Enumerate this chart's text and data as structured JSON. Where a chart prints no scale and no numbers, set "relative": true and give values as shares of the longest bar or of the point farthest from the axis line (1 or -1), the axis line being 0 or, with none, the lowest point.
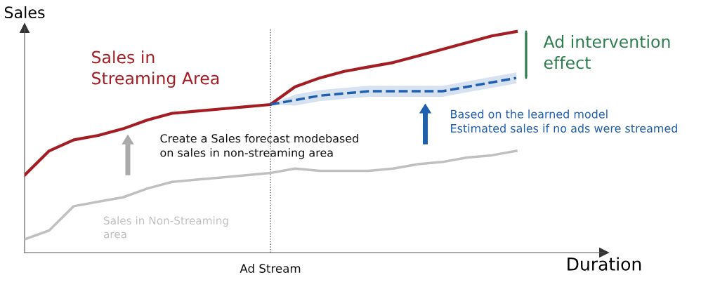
{
  "chart_data": {
    "type": "line",
    "relative": true,
    "xlabel": "Duration",
    "ylabel": "Sales",
    "categories": [
      null,
      null,
      null,
      null,
      null,
      null,
      null,
      null,
      null,
      null,
      null,
      null,
      null,
      null,
      null,
      null,
      null,
      null,
      null,
      null,
      null
    ],
    "series": [
      {
        "name": "Sales in\nStreaming Area",
        "color": "#a51d24",
        "values": [
          0.35,
          0.46,
          0.51,
          0.53,
          0.56,
          0.6,
          0.63,
          0.64,
          0.65,
          0.66,
          0.67,
          0.75,
          0.79,
          0.82,
          0.84,
          0.86,
          0.89,
          0.92,
          0.95,
          0.98,
          1.0
        ]
      },
      {
        "name": "Based on the learned model\nEstimated sales if no ads were streamed",
        "color": "#1f5fb0",
        "line_style": "dashed",
        "values": [
          null,
          null,
          null,
          null,
          null,
          null,
          null,
          null,
          null,
          null,
          0.67,
          0.69,
          0.71,
          0.72,
          0.73,
          0.73,
          0.73,
          0.73,
          0.75,
          0.77,
          0.79
        ],
        "lower": [
          null,
          null,
          null,
          null,
          null,
          null,
          null,
          null,
          null,
          null,
          0.67,
          0.665,
          0.685,
          0.695,
          0.705,
          0.705,
          0.705,
          0.705,
          0.725,
          0.745,
          0.765
        ],
        "upper": [
          null,
          null,
          null,
          null,
          null,
          null,
          null,
          null,
          null,
          null,
          0.67,
          0.715,
          0.735,
          0.745,
          0.755,
          0.755,
          0.755,
          0.755,
          0.775,
          0.795,
          0.815
        ]
      },
      {
        "name": "Sales in Non-Streaming\narea",
        "color": "#c0c0c0",
        "values": [
          0.06,
          0.1,
          0.21,
          0.23,
          0.25,
          0.29,
          0.32,
          0.33,
          0.34,
          0.35,
          0.36,
          0.38,
          0.37,
          0.37,
          0.37,
          0.38,
          0.4,
          0.41,
          0.43,
          0.44,
          0.46
        ]
      }
    ],
    "annotations": [
      "Ad intervention\neffect",
      "Create a Sales forecast modebased\non sales in non-streaming area",
      "Ad Stream"
    ],
    "grid": false
  }
}
